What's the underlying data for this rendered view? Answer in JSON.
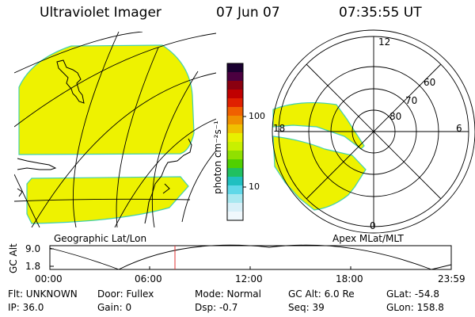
{
  "header": {
    "instrument": "Ultraviolet Imager",
    "date": "07 Jun 07",
    "time": "07:35:55 UT"
  },
  "geo_panel": {
    "label": "Geographic Lat/Lon"
  },
  "apex_panel": {
    "label": "Apex MLat/MLT",
    "mlt_labels": [
      "12",
      "18",
      "6",
      "0"
    ],
    "lat_labels": [
      "60",
      "70",
      "80"
    ]
  },
  "colorbar": {
    "unit_label": "photon cm⁻²s⁻¹",
    "ticks": [
      "100",
      "10"
    ],
    "scale": "log",
    "colors": [
      "#1a0030",
      "#4b0040",
      "#8a0010",
      "#c00000",
      "#e02000",
      "#f06000",
      "#f09000",
      "#f0c000",
      "#e8f000",
      "#c8f000",
      "#90e000",
      "#50d000",
      "#20c060",
      "#20c0c0",
      "#60d8e8",
      "#a8e8f0",
      "#d8f0f8",
      "#f0f8fc"
    ]
  },
  "timeline": {
    "axis_label": "GC Alt",
    "y_ticks": [
      "9.0",
      "1.8"
    ],
    "x_ticks": [
      "00:00",
      "06:00",
      "12:00",
      "18:00",
      "23:59"
    ],
    "marker_time": "07:35:55"
  },
  "status": {
    "flt": "Flt: UNKNOWN",
    "ip": "IP: 36.0",
    "door": "Door: Fullex",
    "gain": "Gain:  0",
    "mode": "Mode: Normal",
    "dsp": "Dsp:    -0.7",
    "gc_alt": "GC Alt: 6.0 Re",
    "seq": "Seq: 39",
    "glat": "GLat: -54.8",
    "glon": "GLon: 158.8"
  },
  "colors": {
    "image_fill": "#eef200",
    "image_edge": "#40d0b0",
    "orbit_marker": "#e03030"
  }
}
